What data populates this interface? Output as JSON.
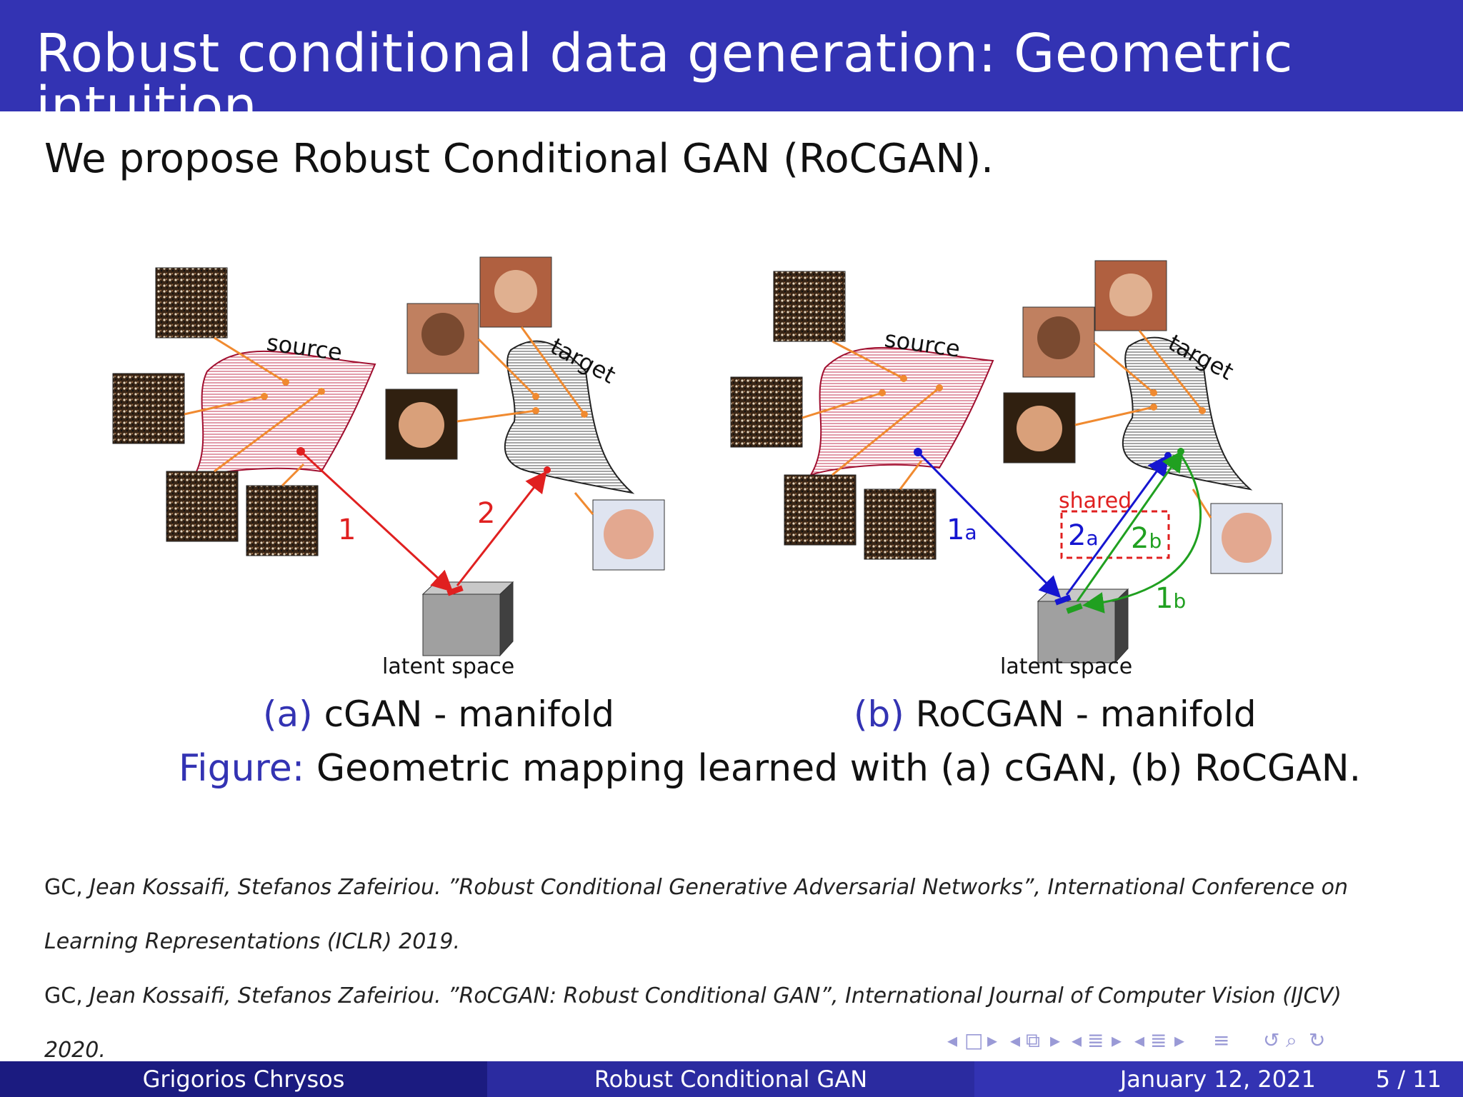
{
  "header": {
    "title": "Robust conditional data generation: Geometric intuition"
  },
  "intro": "We propose Robust Conditional GAN (RoCGAN).",
  "diagram_a": {
    "source_label": "source",
    "target_label": "target",
    "latent_label": "latent space",
    "arrow1": "1",
    "arrow2": "2"
  },
  "diagram_b": {
    "source_label": "source",
    "target_label": "target",
    "latent_label": "latent space",
    "shared_label": "shared",
    "arrow_1a": "1",
    "arrow_1a_sub": "a",
    "arrow_2a": "2",
    "arrow_2a_sub": "a",
    "arrow_2b": "2",
    "arrow_2b_sub": "b",
    "arrow_1b": "1",
    "arrow_1b_sub": "b"
  },
  "captions": {
    "a_tag": "(a)",
    "a_text": "cGAN - manifold",
    "b_tag": "(b)",
    "b_text": "RoCGAN - manifold",
    "figure_prefix": "Figure:",
    "figure_text": "Geometric mapping learned with (a) cGAN, (b) RoCGAN."
  },
  "references": [
    {
      "authors_first": "GC,",
      "authors_rest": "Jean Kossaifi, Stefanos Zafeiriou. ”Robust Conditional Generative Adversarial Networks”, International Conference on",
      "line2": "Learning Representations (ICLR) 2019."
    },
    {
      "authors_first": "GC,",
      "authors_rest": "Jean Kossaifi, Stefanos Zafeiriou. ”RoCGAN: Robust Conditional GAN”, International Journal of Computer Vision (IJCV)",
      "line2": "2020."
    }
  ],
  "nav_icons": [
    "nav-prev-frame-icon",
    "nav-frame-icon",
    "nav-next-frame-icon",
    "nav-prev-subsection-icon",
    "nav-subsection-icon",
    "nav-next-subsection-icon",
    "nav-prev-section-icon",
    "nav-section-icon",
    "nav-next-section-icon",
    "nav-prev-slide-icon",
    "nav-slide-icon",
    "nav-next-slide-icon",
    "nav-toc-icon",
    "nav-undo-icon",
    "nav-search-icon",
    "nav-redo-icon"
  ],
  "footer": {
    "author": "Grigorios Chrysos",
    "title": "Robust Conditional GAN",
    "date": "January 12, 2021",
    "page": "5 / 11"
  },
  "colors": {
    "beamer_blue": "#3333b3",
    "arrow_red": "#e02020",
    "arrow_blue": "#1515d0",
    "arrow_green": "#20a020",
    "connector_orange": "#f08a30"
  }
}
